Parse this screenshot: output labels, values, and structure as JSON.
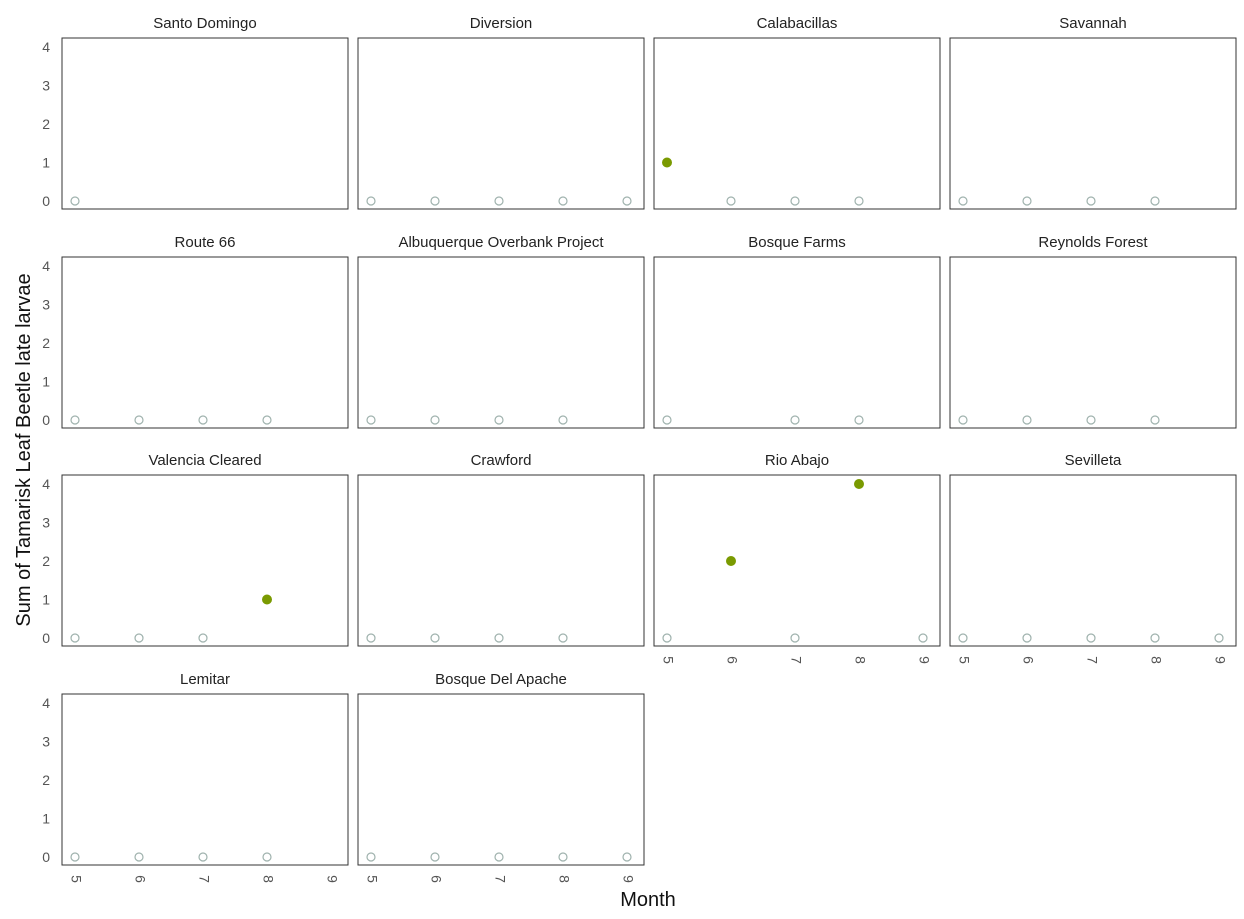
{
  "chart_data": {
    "type": "scatter",
    "xlabel": "Month",
    "ylabel": "Sum of Tamarisk Leaf Beetle late larvae",
    "x_ticks": [
      5,
      6,
      7,
      8,
      9
    ],
    "y_ticks": [
      0,
      1,
      2,
      3,
      4
    ],
    "xlim": [
      5,
      9
    ],
    "ylim": [
      0,
      4
    ],
    "grid": false,
    "colors": {
      "positive_point": "#7a9a01",
      "zero_point_stroke": "#9fb2ad",
      "panel_border": "#333333"
    },
    "panels": [
      {
        "name": "Santo Domingo",
        "points": [
          {
            "x": 5,
            "y": 0
          }
        ]
      },
      {
        "name": "Diversion",
        "points": [
          {
            "x": 5,
            "y": 0
          },
          {
            "x": 6,
            "y": 0
          },
          {
            "x": 7,
            "y": 0
          },
          {
            "x": 8,
            "y": 0
          },
          {
            "x": 9,
            "y": 0
          }
        ]
      },
      {
        "name": "Calabacillas",
        "points": [
          {
            "x": 5,
            "y": 1
          },
          {
            "x": 6,
            "y": 0
          },
          {
            "x": 7,
            "y": 0
          },
          {
            "x": 8,
            "y": 0
          }
        ]
      },
      {
        "name": "Savannah",
        "points": [
          {
            "x": 5,
            "y": 0
          },
          {
            "x": 6,
            "y": 0
          },
          {
            "x": 7,
            "y": 0
          },
          {
            "x": 8,
            "y": 0
          }
        ]
      },
      {
        "name": "Route 66",
        "points": [
          {
            "x": 5,
            "y": 0
          },
          {
            "x": 6,
            "y": 0
          },
          {
            "x": 7,
            "y": 0
          },
          {
            "x": 8,
            "y": 0
          }
        ]
      },
      {
        "name": "Albuquerque Overbank Project",
        "points": [
          {
            "x": 5,
            "y": 0
          },
          {
            "x": 6,
            "y": 0
          },
          {
            "x": 7,
            "y": 0
          },
          {
            "x": 8,
            "y": 0
          }
        ]
      },
      {
        "name": "Bosque Farms",
        "points": [
          {
            "x": 5,
            "y": 0
          },
          {
            "x": 7,
            "y": 0
          },
          {
            "x": 8,
            "y": 0
          }
        ]
      },
      {
        "name": "Reynolds Forest",
        "points": [
          {
            "x": 5,
            "y": 0
          },
          {
            "x": 6,
            "y": 0
          },
          {
            "x": 7,
            "y": 0
          },
          {
            "x": 8,
            "y": 0
          }
        ]
      },
      {
        "name": "Valencia Cleared",
        "points": [
          {
            "x": 5,
            "y": 0
          },
          {
            "x": 6,
            "y": 0
          },
          {
            "x": 7,
            "y": 0
          },
          {
            "x": 8,
            "y": 1
          }
        ]
      },
      {
        "name": "Crawford",
        "points": [
          {
            "x": 5,
            "y": 0
          },
          {
            "x": 6,
            "y": 0
          },
          {
            "x": 7,
            "y": 0
          },
          {
            "x": 8,
            "y": 0
          }
        ]
      },
      {
        "name": "Rio Abajo",
        "points": [
          {
            "x": 5,
            "y": 0
          },
          {
            "x": 6,
            "y": 2
          },
          {
            "x": 7,
            "y": 0
          },
          {
            "x": 8,
            "y": 4
          },
          {
            "x": 9,
            "y": 0
          }
        ]
      },
      {
        "name": "Sevilleta",
        "points": [
          {
            "x": 5,
            "y": 0
          },
          {
            "x": 6,
            "y": 0
          },
          {
            "x": 7,
            "y": 0
          },
          {
            "x": 8,
            "y": 0
          },
          {
            "x": 9,
            "y": 0
          }
        ]
      },
      {
        "name": "Lemitar",
        "points": [
          {
            "x": 5,
            "y": 0
          },
          {
            "x": 6,
            "y": 0
          },
          {
            "x": 7,
            "y": 0
          },
          {
            "x": 8,
            "y": 0
          }
        ]
      },
      {
        "name": "Bosque Del Apache",
        "points": [
          {
            "x": 5,
            "y": 0
          },
          {
            "x": 6,
            "y": 0
          },
          {
            "x": 7,
            "y": 0
          },
          {
            "x": 8,
            "y": 0
          },
          {
            "x": 9,
            "y": 0
          }
        ]
      }
    ]
  }
}
